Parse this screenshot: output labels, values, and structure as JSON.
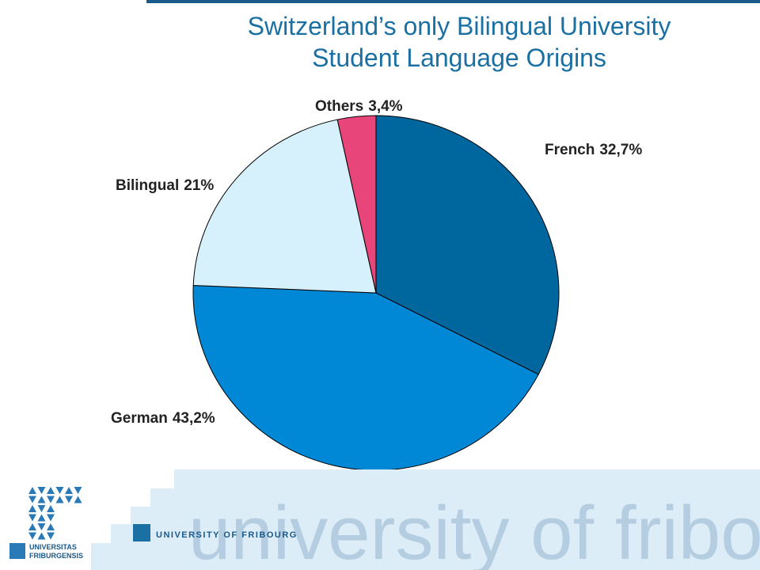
{
  "chart_data": {
    "type": "pie",
    "title": [
      "Switzerland’s only Bilingual University",
      "Student Language Origins"
    ],
    "categories": [
      "French",
      "German",
      "Bilingual",
      "Others"
    ],
    "values": [
      32.7,
      43.2,
      21,
      3.4
    ],
    "value_labels": [
      "32,7%",
      "43,2%",
      "21%",
      "3,4%"
    ],
    "colors": [
      "#00669e",
      "#0088d6",
      "#d6f0fc",
      "#e8457a"
    ]
  },
  "branding": {
    "wordmark": "university of fribour",
    "name": "UNIVERSITY OF FRIBOURG",
    "seal": [
      "UNIVERSITAS",
      "FRIBURGENSIS"
    ]
  }
}
